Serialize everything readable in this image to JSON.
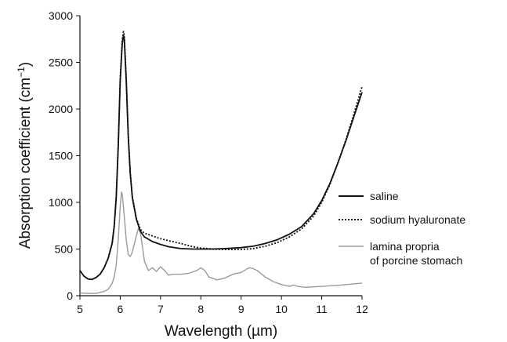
{
  "chart_data": {
    "type": "line",
    "xlabel": "Wavelength (µm)",
    "ylabel_main": "Absorption coefficient (cm",
    "ylabel_sup": "−1",
    "ylabel_close": ")",
    "xlim": [
      5,
      12
    ],
    "ylim": [
      0,
      3000
    ],
    "xticks": [
      "5",
      "6",
      "7",
      "8",
      "9",
      "10",
      "11",
      "12"
    ],
    "yticks": [
      "0",
      "500",
      "1000",
      "1500",
      "2000",
      "2500",
      "3000"
    ],
    "grid": false,
    "legend_position": "right",
    "series": [
      {
        "name": "saline",
        "style": "solid",
        "color": "#111111",
        "x": [
          5.0,
          5.1,
          5.2,
          5.3,
          5.4,
          5.5,
          5.6,
          5.7,
          5.8,
          5.85,
          5.9,
          5.95,
          6.0,
          6.05,
          6.08,
          6.1,
          6.15,
          6.2,
          6.25,
          6.3,
          6.4,
          6.5,
          6.6,
          6.8,
          7.0,
          7.2,
          7.5,
          7.8,
          8.0,
          8.3,
          8.6,
          9.0,
          9.3,
          9.6,
          9.9,
          10.2,
          10.5,
          10.8,
          11.0,
          11.2,
          11.4,
          11.6,
          11.8,
          12.0
        ],
        "y": [
          270,
          210,
          180,
          175,
          195,
          230,
          300,
          400,
          560,
          740,
          1050,
          1600,
          2300,
          2700,
          2790,
          2750,
          2300,
          1700,
          1300,
          1050,
          820,
          690,
          630,
          580,
          550,
          525,
          505,
          500,
          500,
          500,
          505,
          515,
          530,
          560,
          600,
          660,
          740,
          880,
          1020,
          1200,
          1420,
          1660,
          1920,
          2180
        ]
      },
      {
        "name": "sodium hyaluronate",
        "style": "dotted",
        "color": "#111111",
        "x": [
          5.0,
          5.1,
          5.2,
          5.3,
          5.4,
          5.5,
          5.6,
          5.7,
          5.8,
          5.85,
          5.9,
          5.95,
          6.0,
          6.05,
          6.08,
          6.1,
          6.15,
          6.2,
          6.25,
          6.3,
          6.4,
          6.5,
          6.6,
          6.8,
          7.0,
          7.2,
          7.5,
          7.8,
          8.0,
          8.3,
          8.6,
          9.0,
          9.3,
          9.6,
          9.9,
          10.2,
          10.5,
          10.8,
          11.0,
          11.2,
          11.4,
          11.6,
          11.8,
          12.0
        ],
        "y": [
          270,
          210,
          180,
          175,
          195,
          230,
          300,
          400,
          560,
          740,
          1060,
          1620,
          2330,
          2740,
          2830,
          2790,
          2330,
          1720,
          1310,
          1060,
          830,
          710,
          670,
          640,
          610,
          590,
          560,
          525,
          510,
          500,
          495,
          495,
          505,
          530,
          570,
          630,
          715,
          855,
          1000,
          1190,
          1420,
          1670,
          1950,
          2240
        ]
      },
      {
        "name": "lamina propria\nof porcine stomach",
        "style": "solid",
        "color": "#9a9a9a",
        "x": [
          5.0,
          5.2,
          5.4,
          5.6,
          5.7,
          5.8,
          5.85,
          5.9,
          5.95,
          6.0,
          6.03,
          6.05,
          6.1,
          6.15,
          6.2,
          6.25,
          6.3,
          6.4,
          6.45,
          6.5,
          6.55,
          6.6,
          6.7,
          6.8,
          6.9,
          7.0,
          7.1,
          7.2,
          7.3,
          7.5,
          7.7,
          7.9,
          8.0,
          8.1,
          8.2,
          8.4,
          8.6,
          8.8,
          9.0,
          9.2,
          9.3,
          9.4,
          9.6,
          9.8,
          10.0,
          10.2,
          10.3,
          10.4,
          10.6,
          10.8,
          11.0,
          11.5,
          12.0
        ],
        "y": [
          30,
          25,
          25,
          45,
          70,
          130,
          200,
          330,
          600,
          960,
          1110,
          1090,
          850,
          600,
          440,
          420,
          470,
          640,
          720,
          680,
          530,
          370,
          270,
          300,
          260,
          310,
          270,
          220,
          230,
          230,
          240,
          270,
          300,
          270,
          200,
          170,
          190,
          230,
          250,
          300,
          290,
          270,
          200,
          150,
          120,
          100,
          115,
          100,
          90,
          95,
          100,
          115,
          135
        ]
      }
    ]
  }
}
